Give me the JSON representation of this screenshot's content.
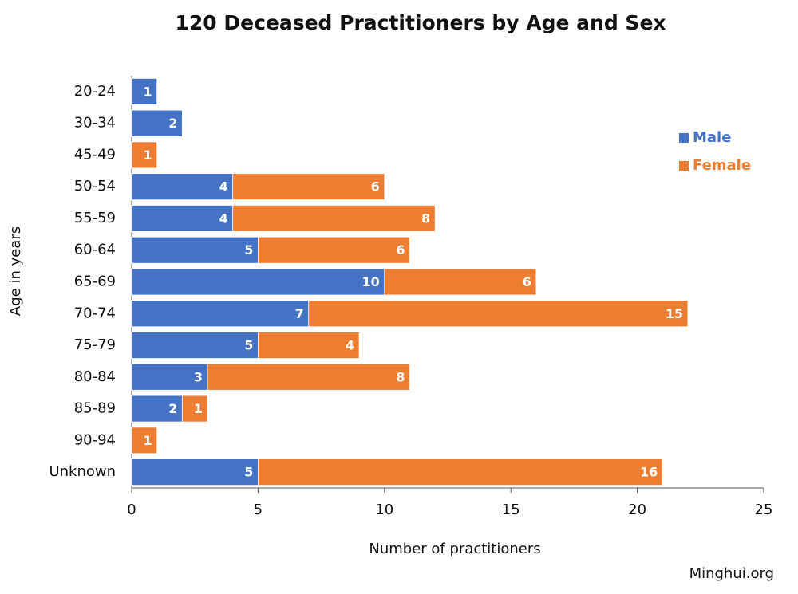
{
  "chart_data": {
    "type": "stacked-bar-horizontal",
    "title": "120 Deceased Practitioners by Age and Sex",
    "categories": [
      "20-24",
      "30-34",
      "45-49",
      "50-54",
      "55-59",
      "60-64",
      "65-69",
      "70-74",
      "75-79",
      "80-84",
      "85-89",
      "90-94",
      "Unknown"
    ],
    "series": [
      {
        "name": "Male",
        "color": "#4472c4",
        "values": [
          1,
          2,
          null,
          4,
          4,
          5,
          10,
          7,
          5,
          3,
          2,
          null,
          5
        ]
      },
      {
        "name": "Female",
        "color": "#ed7d31",
        "values": [
          null,
          null,
          1,
          6,
          8,
          6,
          6,
          15,
          4,
          8,
          1,
          1,
          16
        ]
      }
    ],
    "xlim": [
      0,
      25
    ],
    "xticks": [
      0,
      5,
      10,
      15,
      20,
      25
    ],
    "x_label": "Number of practitioners",
    "y_label": "Age in years",
    "legend": "right",
    "source": "Minghui.org"
  }
}
